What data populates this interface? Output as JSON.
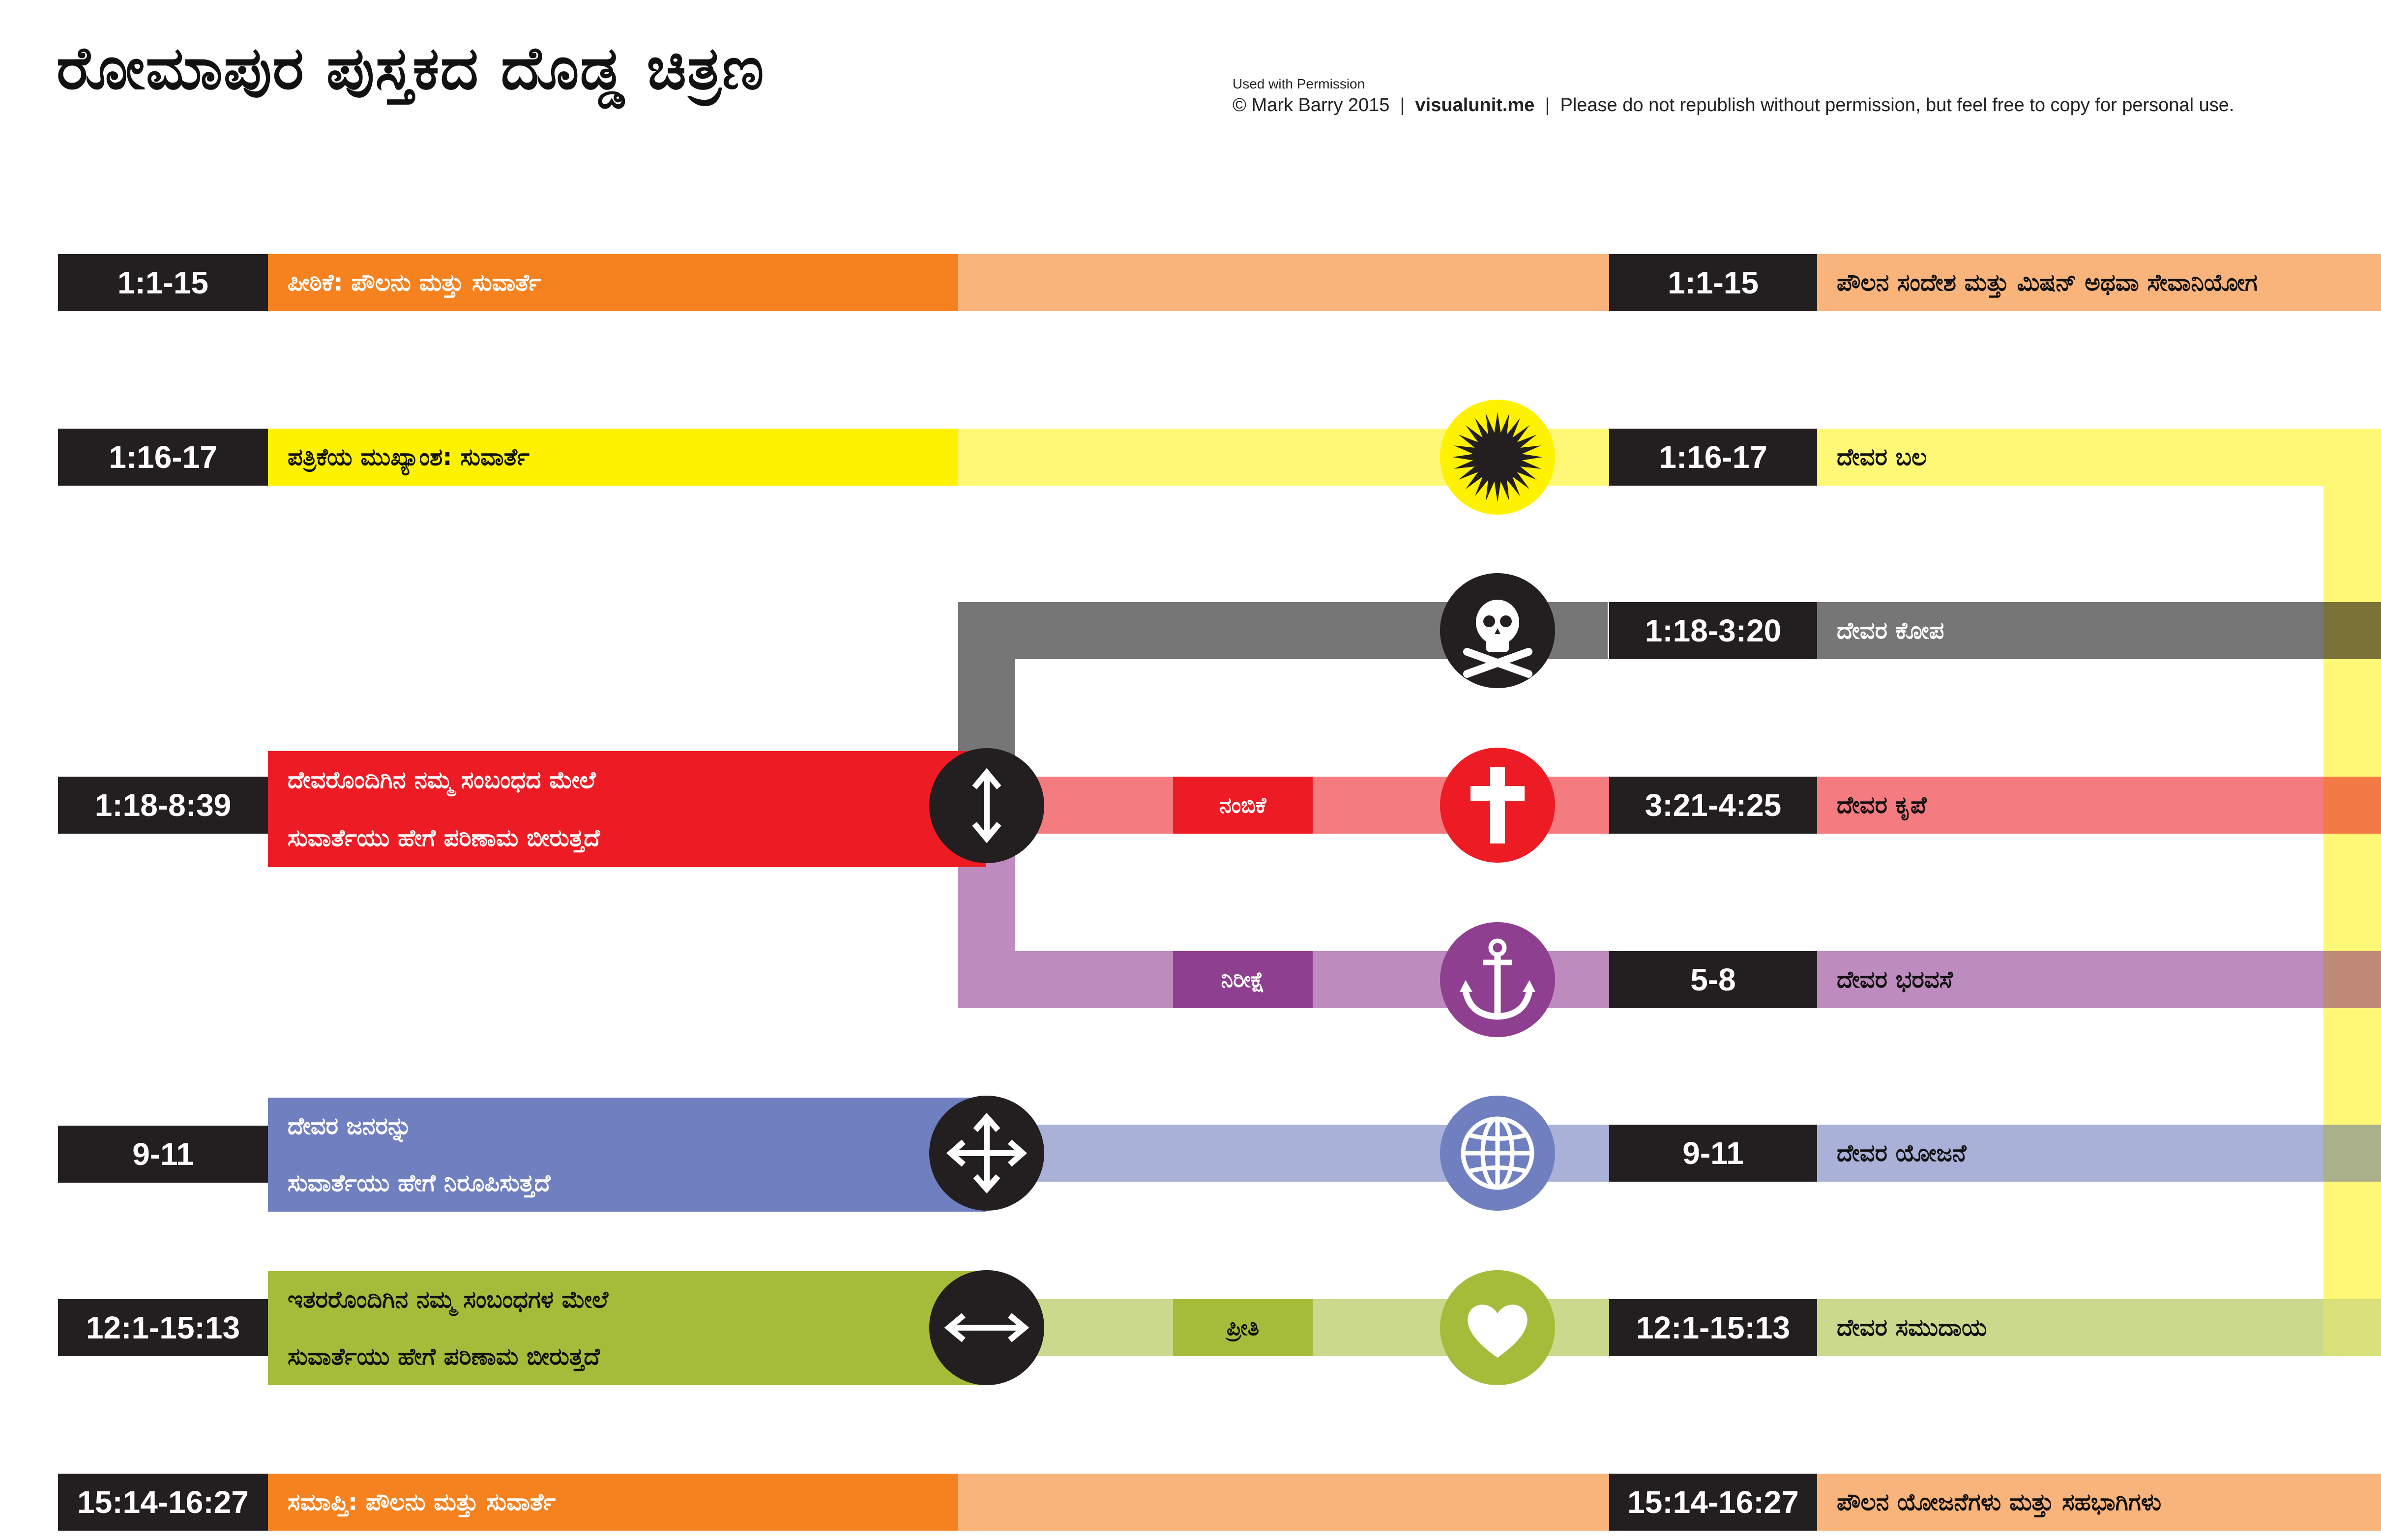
{
  "title": "ರೋಮಾಪುರ ಪುಸ್ತಕದ ದೊಡ್ಡ ಚಿತ್ರಣ",
  "credit": {
    "permission": "Used with Permission",
    "copyright": "© Mark Barry 2015",
    "site": "visualunit.me",
    "notice": "Please do not republish without permission, but feel free to copy for personal use."
  },
  "rows": [
    {
      "left_ref": "1:1-15",
      "left_label": "ಪೀಠಿಕೆ:    ಪೌಲನು ಮತ್ತು ಸುವಾರ್ತೆ",
      "right_ref": "1:1-15",
      "right_label": "ಪೌಲನ ಸಂದೇಶ ಮತ್ತು ಮಿಷನ್ ಅಥವಾ ಸೇವಾನಿಯೋಗ"
    },
    {
      "left_ref": "1:16-17",
      "left_label": "ಪತ್ರಿಕೆಯ ಮುಖ್ಯಾಂಶ:  ಸುವಾರ್ತೆ",
      "right_ref": "1:16-17",
      "right_label": "ದೇವರ ಬಲ",
      "icon": "sunburst-icon"
    },
    {
      "right_ref": "1:18-3:20",
      "right_label": "ದೇವರ ಕೋಪ",
      "icon": "skull-crossbones-icon"
    },
    {
      "left_ref": "1:18-8:39",
      "left_line1": "ದೇವರೊಂದಿಗಿನ ನಮ್ಮ ಸಂಬಂಧದ ಮೇಲೆ",
      "left_line2": "ಸುವಾರ್ತೆಯು ಹೇಗೆ ಪರಿಣಾಮ ಬೀರುತ್ತದೆ",
      "mini": "ನಂಬಿಕೆ",
      "right_ref": "3:21-4:25",
      "right_label": "ದೇವರ ಕೃಪೆ",
      "icon": "cross-icon"
    },
    {
      "mini": "ನಿರೀಕ್ಷೆ",
      "right_ref": "5-8",
      "right_label": "ದೇವರ ಭರವಸೆ",
      "icon": "anchor-icon"
    },
    {
      "left_ref": "9-11",
      "left_line1": "ದೇವರ ಜನರನ್ನು",
      "left_line2": "ಸುವಾರ್ತೆಯು ಹೇಗೆ ನಿರೂಪಿಸುತ್ತದೆ",
      "right_ref": "9-11",
      "right_label": "ದೇವರ ಯೋಜನೆ",
      "icon": "globe-icon"
    },
    {
      "left_ref": "12:1-15:13",
      "left_line1": "ಇತರರೊಂದಿಗಿನ ನಮ್ಮ ಸಂಬಂಧಗಳ ಮೇಲೆ",
      "left_line2": "ಸುವಾರ್ತೆಯು ಹೇಗೆ ಪರಿಣಾಮ ಬೀರುತ್ತದೆ",
      "mini": "ಪ್ರೀತಿ",
      "right_ref": "12:1-15:13",
      "right_label": "ದೇವರ ಸಮುದಾಯ",
      "icon": "heart-icon"
    },
    {
      "left_ref": "15:14-16:27",
      "left_label": "ಸಮಾಪ್ತಿ: ಪೌಲನು ಮತ್ತು ಸುವಾರ್ತೆ",
      "right_ref": "15:14-16:27",
      "right_label": "ಪೌಲನ ಯೋಜನೆಗಳು ಮತ್ತು ಸಹಭಾಗಿಗಳು"
    }
  ],
  "colors": {
    "orange": "#f5821f",
    "orange_light": "#f9b47c",
    "yellow": "#fff200",
    "yellow_light": "#fff776",
    "gray": "#767676",
    "red": "#ed1c24",
    "red_light": "#f47b80",
    "purple": "#8f3f8f",
    "purple_light": "#bd8bbd",
    "blue": "#6f7fbf",
    "blue_light": "#a9b1d8",
    "green": "#a4bc3a",
    "green_light": "#cbd98c",
    "dark": "#231f20"
  }
}
